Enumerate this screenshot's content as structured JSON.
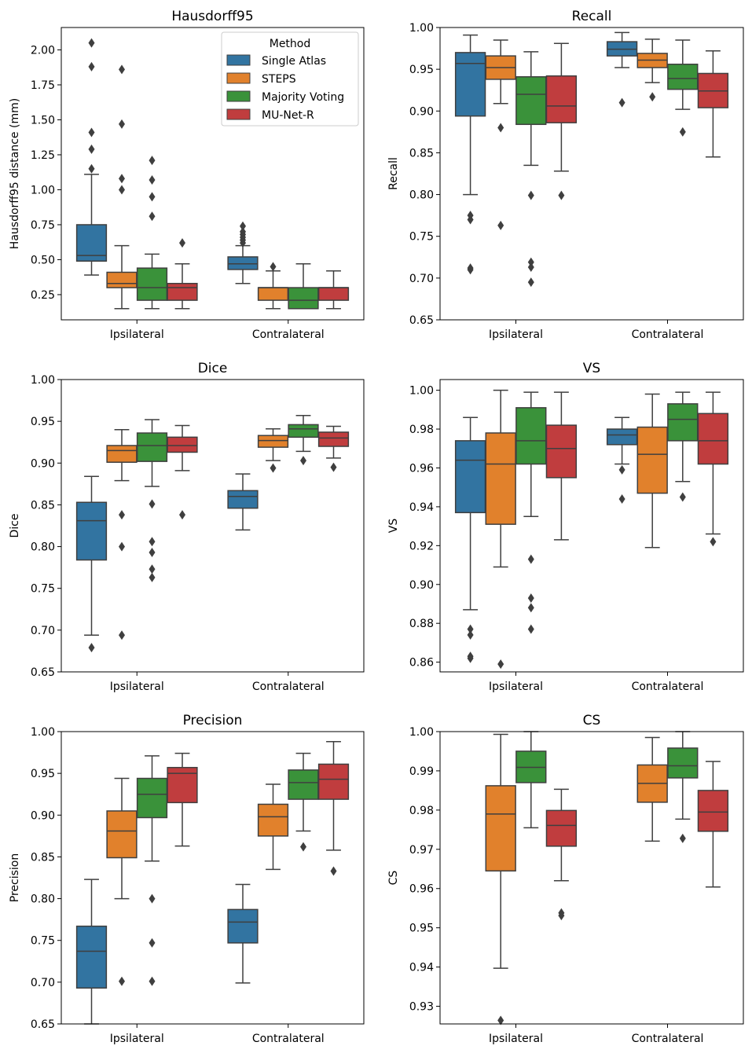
{
  "legend": {
    "title": "Method",
    "entries": [
      "Single Atlas",
      "STEPS",
      "Majority Voting",
      "MU-Net-R"
    ],
    "colors": [
      "#3274a1",
      "#e1812c",
      "#3a923a",
      "#c03d3e"
    ]
  },
  "chart_data": [
    {
      "type": "box",
      "title": "Hausdorff95",
      "ylabel": "Hausdorff95 distance (mm)",
      "xlabel": "",
      "categories": [
        "Ipsilateral",
        "Contralateral"
      ],
      "ylim": [
        0.07,
        2.16
      ],
      "yticks": [
        0.25,
        0.5,
        0.75,
        1.0,
        1.25,
        1.5,
        1.75,
        2.0
      ],
      "ytick_labels": [
        "0.25",
        "0.50",
        "0.75",
        "1.00",
        "1.25",
        "1.50",
        "1.75",
        "2.00"
      ],
      "legend_position": "top-right",
      "series": [
        {
          "name": "Single Atlas",
          "boxes": [
            {
              "whislo": 0.39,
              "q1": 0.49,
              "med": 0.53,
              "q3": 0.75,
              "whishi": 1.11,
              "fliers": [
                1.15,
                1.29,
                1.41,
                1.88,
                2.05
              ]
            },
            {
              "whislo": 0.33,
              "q1": 0.43,
              "med": 0.47,
              "q3": 0.52,
              "whishi": 0.6,
              "fliers": [
                0.62,
                0.64,
                0.66,
                0.68,
                0.7,
                0.74
              ]
            }
          ]
        },
        {
          "name": "STEPS",
          "boxes": [
            {
              "whislo": 0.15,
              "q1": 0.3,
              "med": 0.33,
              "q3": 0.41,
              "whishi": 0.6,
              "fliers": [
                1.0,
                1.08,
                1.47,
                1.86
              ]
            },
            {
              "whislo": 0.15,
              "q1": 0.21,
              "med": 0.3,
              "q3": 0.3,
              "whishi": 0.42,
              "fliers": [
                0.45
              ]
            }
          ]
        },
        {
          "name": "Majority Voting",
          "boxes": [
            {
              "whislo": 0.15,
              "q1": 0.21,
              "med": 0.3,
              "q3": 0.44,
              "whishi": 0.54,
              "fliers": [
                0.81,
                0.95,
                1.07,
                1.21
              ]
            },
            {
              "whislo": 0.15,
              "q1": 0.15,
              "med": 0.21,
              "q3": 0.3,
              "whishi": 0.47,
              "fliers": []
            }
          ]
        },
        {
          "name": "MU-Net-R",
          "boxes": [
            {
              "whislo": 0.15,
              "q1": 0.21,
              "med": 0.3,
              "q3": 0.33,
              "whishi": 0.47,
              "fliers": [
                0.62
              ]
            },
            {
              "whislo": 0.15,
              "q1": 0.21,
              "med": 0.3,
              "q3": 0.3,
              "whishi": 0.42,
              "fliers": []
            }
          ]
        }
      ]
    },
    {
      "type": "box",
      "title": "Recall",
      "ylabel": "Recall",
      "xlabel": "",
      "categories": [
        "Ipsilateral",
        "Contralateral"
      ],
      "ylim": [
        0.65,
        1.0
      ],
      "yticks": [
        0.65,
        0.7,
        0.75,
        0.8,
        0.85,
        0.9,
        0.95,
        1.0
      ],
      "ytick_labels": [
        "0.65",
        "0.70",
        "0.75",
        "0.80",
        "0.85",
        "0.90",
        "0.95",
        "1.00"
      ],
      "series": [
        {
          "name": "Single Atlas",
          "boxes": [
            {
              "whislo": 0.8,
              "q1": 0.894,
              "med": 0.957,
              "q3": 0.97,
              "whishi": 0.991,
              "fliers": [
                0.775,
                0.77,
                0.712,
                0.71
              ]
            },
            {
              "whislo": 0.952,
              "q1": 0.966,
              "med": 0.974,
              "q3": 0.983,
              "whishi": 0.994,
              "fliers": [
                0.91
              ]
            }
          ]
        },
        {
          "name": "STEPS",
          "boxes": [
            {
              "whislo": 0.909,
              "q1": 0.938,
              "med": 0.952,
              "q3": 0.966,
              "whishi": 0.985,
              "fliers": [
                0.88,
                0.763
              ]
            },
            {
              "whislo": 0.934,
              "q1": 0.952,
              "med": 0.961,
              "q3": 0.969,
              "whishi": 0.986,
              "fliers": [
                0.917
              ]
            }
          ]
        },
        {
          "name": "Majority Voting",
          "boxes": [
            {
              "whislo": 0.835,
              "q1": 0.884,
              "med": 0.92,
              "q3": 0.941,
              "whishi": 0.971,
              "fliers": [
                0.799,
                0.719,
                0.713,
                0.695
              ]
            },
            {
              "whislo": 0.902,
              "q1": 0.926,
              "med": 0.939,
              "q3": 0.956,
              "whishi": 0.985,
              "fliers": [
                0.875
              ]
            }
          ]
        },
        {
          "name": "MU-Net-R",
          "boxes": [
            {
              "whislo": 0.828,
              "q1": 0.886,
              "med": 0.906,
              "q3": 0.942,
              "whishi": 0.981,
              "fliers": [
                0.799
              ]
            },
            {
              "whislo": 0.845,
              "q1": 0.904,
              "med": 0.924,
              "q3": 0.945,
              "whishi": 0.972,
              "fliers": []
            }
          ]
        }
      ]
    },
    {
      "type": "box",
      "title": "Dice",
      "ylabel": "Dice",
      "xlabel": "",
      "categories": [
        "Ipsilateral",
        "Contralateral"
      ],
      "ylim": [
        0.65,
        1.0
      ],
      "yticks": [
        0.65,
        0.7,
        0.75,
        0.8,
        0.85,
        0.9,
        0.95,
        1.0
      ],
      "ytick_labels": [
        "0.65",
        "0.70",
        "0.75",
        "0.80",
        "0.85",
        "0.90",
        "0.95",
        "1.00"
      ],
      "series": [
        {
          "name": "Single Atlas",
          "boxes": [
            {
              "whislo": 0.694,
              "q1": 0.784,
              "med": 0.831,
              "q3": 0.853,
              "whishi": 0.884,
              "fliers": [
                0.679
              ]
            },
            {
              "whislo": 0.82,
              "q1": 0.846,
              "med": 0.86,
              "q3": 0.867,
              "whishi": 0.887,
              "fliers": []
            }
          ]
        },
        {
          "name": "STEPS",
          "boxes": [
            {
              "whislo": 0.879,
              "q1": 0.901,
              "med": 0.915,
              "q3": 0.921,
              "whishi": 0.94,
              "fliers": [
                0.838,
                0.8,
                0.694
              ]
            },
            {
              "whislo": 0.903,
              "q1": 0.919,
              "med": 0.927,
              "q3": 0.933,
              "whishi": 0.941,
              "fliers": [
                0.894
              ]
            }
          ]
        },
        {
          "name": "Majority Voting",
          "boxes": [
            {
              "whislo": 0.872,
              "q1": 0.902,
              "med": 0.921,
              "q3": 0.936,
              "whishi": 0.952,
              "fliers": [
                0.851,
                0.806,
                0.793,
                0.773,
                0.763
              ]
            },
            {
              "whislo": 0.914,
              "q1": 0.931,
              "med": 0.941,
              "q3": 0.946,
              "whishi": 0.957,
              "fliers": [
                0.903
              ]
            }
          ]
        },
        {
          "name": "MU-Net-R",
          "boxes": [
            {
              "whislo": 0.891,
              "q1": 0.913,
              "med": 0.921,
              "q3": 0.931,
              "whishi": 0.945,
              "fliers": [
                0.838
              ]
            },
            {
              "whislo": 0.906,
              "q1": 0.92,
              "med": 0.93,
              "q3": 0.937,
              "whishi": 0.944,
              "fliers": [
                0.895
              ]
            }
          ]
        }
      ]
    },
    {
      "type": "box",
      "title": "VS",
      "ylabel": "VS",
      "xlabel": "",
      "categories": [
        "Ipsilateral",
        "Contralateral"
      ],
      "ylim": [
        0.855,
        1.0055
      ],
      "yticks": [
        0.86,
        0.88,
        0.9,
        0.92,
        0.94,
        0.96,
        0.98,
        1.0
      ],
      "ytick_labels": [
        "0.86",
        "0.88",
        "0.90",
        "0.92",
        "0.94",
        "0.96",
        "0.98",
        "1.00"
      ],
      "series": [
        {
          "name": "Single Atlas",
          "boxes": [
            {
              "whislo": 0.887,
              "q1": 0.937,
              "med": 0.964,
              "q3": 0.974,
              "whishi": 0.986,
              "fliers": [
                0.877,
                0.874,
                0.863,
                0.862
              ]
            },
            {
              "whislo": 0.962,
              "q1": 0.972,
              "med": 0.977,
              "q3": 0.98,
              "whishi": 0.986,
              "fliers": [
                0.959,
                0.944
              ]
            }
          ]
        },
        {
          "name": "STEPS",
          "boxes": [
            {
              "whislo": 0.909,
              "q1": 0.931,
              "med": 0.962,
              "q3": 0.978,
              "whishi": 1.0,
              "fliers": [
                0.859
              ]
            },
            {
              "whislo": 0.919,
              "q1": 0.947,
              "med": 0.967,
              "q3": 0.981,
              "whishi": 0.998,
              "fliers": []
            }
          ]
        },
        {
          "name": "Majority Voting",
          "boxes": [
            {
              "whislo": 0.935,
              "q1": 0.962,
              "med": 0.974,
              "q3": 0.991,
              "whishi": 0.999,
              "fliers": [
                0.913,
                0.893,
                0.888,
                0.877
              ]
            },
            {
              "whislo": 0.953,
              "q1": 0.974,
              "med": 0.985,
              "q3": 0.993,
              "whishi": 0.999,
              "fliers": [
                0.945
              ]
            }
          ]
        },
        {
          "name": "MU-Net-R",
          "boxes": [
            {
              "whislo": 0.923,
              "q1": 0.955,
              "med": 0.97,
              "q3": 0.982,
              "whishi": 0.999,
              "fliers": []
            },
            {
              "whislo": 0.926,
              "q1": 0.962,
              "med": 0.974,
              "q3": 0.988,
              "whishi": 0.999,
              "fliers": [
                0.922
              ]
            }
          ]
        }
      ]
    },
    {
      "type": "box",
      "title": "Precision",
      "ylabel": "Precision",
      "xlabel": "",
      "categories": [
        "Ipsilateral",
        "Contralateral"
      ],
      "ylim": [
        0.65,
        1.0
      ],
      "yticks": [
        0.65,
        0.7,
        0.75,
        0.8,
        0.85,
        0.9,
        0.95,
        1.0
      ],
      "ytick_labels": [
        "0.65",
        "0.70",
        "0.75",
        "0.80",
        "0.85",
        "0.90",
        "0.95",
        "1.00"
      ],
      "series": [
        {
          "name": "Single Atlas",
          "boxes": [
            {
              "whislo": 0.65,
              "q1": 0.693,
              "med": 0.737,
              "q3": 0.767,
              "whishi": 0.823,
              "fliers": []
            },
            {
              "whislo": 0.699,
              "q1": 0.747,
              "med": 0.772,
              "q3": 0.787,
              "whishi": 0.817,
              "fliers": []
            }
          ]
        },
        {
          "name": "STEPS",
          "boxes": [
            {
              "whislo": 0.8,
              "q1": 0.849,
              "med": 0.881,
              "q3": 0.905,
              "whishi": 0.944,
              "fliers": [
                0.701
              ]
            },
            {
              "whislo": 0.835,
              "q1": 0.875,
              "med": 0.898,
              "q3": 0.913,
              "whishi": 0.937,
              "fliers": []
            }
          ]
        },
        {
          "name": "Majority Voting",
          "boxes": [
            {
              "whislo": 0.845,
              "q1": 0.897,
              "med": 0.925,
              "q3": 0.944,
              "whishi": 0.971,
              "fliers": [
                0.8,
                0.747,
                0.701
              ]
            },
            {
              "whislo": 0.881,
              "q1": 0.919,
              "med": 0.939,
              "q3": 0.954,
              "whishi": 0.974,
              "fliers": [
                0.862
              ]
            }
          ]
        },
        {
          "name": "MU-Net-R",
          "boxes": [
            {
              "whislo": 0.863,
              "q1": 0.915,
              "med": 0.95,
              "q3": 0.957,
              "whishi": 0.974,
              "fliers": []
            },
            {
              "whislo": 0.858,
              "q1": 0.919,
              "med": 0.943,
              "q3": 0.961,
              "whishi": 0.988,
              "fliers": [
                0.833
              ]
            }
          ]
        }
      ]
    },
    {
      "type": "box",
      "title": "CS",
      "ylabel": "CS",
      "xlabel": "",
      "categories": [
        "Ipsilateral",
        "Contralateral"
      ],
      "ylim": [
        0.9255,
        1.0
      ],
      "yticks": [
        0.93,
        0.94,
        0.95,
        0.96,
        0.97,
        0.98,
        0.99,
        1.0
      ],
      "ytick_labels": [
        "0.93",
        "0.94",
        "0.95",
        "0.96",
        "0.97",
        "0.98",
        "0.99",
        "1.00"
      ],
      "series": [
        {
          "name": "Single Atlas",
          "boxes": [
            null,
            null
          ]
        },
        {
          "name": "STEPS",
          "boxes": [
            {
              "whislo": 0.9397,
              "q1": 0.9645,
              "med": 0.979,
              "q3": 0.9862,
              "whishi": 0.9993,
              "fliers": [
                0.9264
              ]
            },
            {
              "whislo": 0.9721,
              "q1": 0.982,
              "med": 0.9868,
              "q3": 0.9915,
              "whishi": 0.9985,
              "fliers": []
            }
          ]
        },
        {
          "name": "Majority Voting",
          "boxes": [
            {
              "whislo": 0.9755,
              "q1": 0.987,
              "med": 0.9909,
              "q3": 0.995,
              "whishi": 1.0,
              "fliers": []
            },
            {
              "whislo": 0.9777,
              "q1": 0.9882,
              "med": 0.9913,
              "q3": 0.9958,
              "whishi": 1.0,
              "fliers": [
                0.9728
              ]
            }
          ]
        },
        {
          "name": "MU-Net-R",
          "boxes": [
            {
              "whislo": 0.962,
              "q1": 0.9708,
              "med": 0.9761,
              "q3": 0.9799,
              "whishi": 0.9853,
              "fliers": [
                0.9538,
                0.9531
              ]
            },
            {
              "whislo": 0.9604,
              "q1": 0.9746,
              "med": 0.9795,
              "q3": 0.985,
              "whishi": 0.9924,
              "fliers": []
            }
          ]
        }
      ]
    }
  ]
}
